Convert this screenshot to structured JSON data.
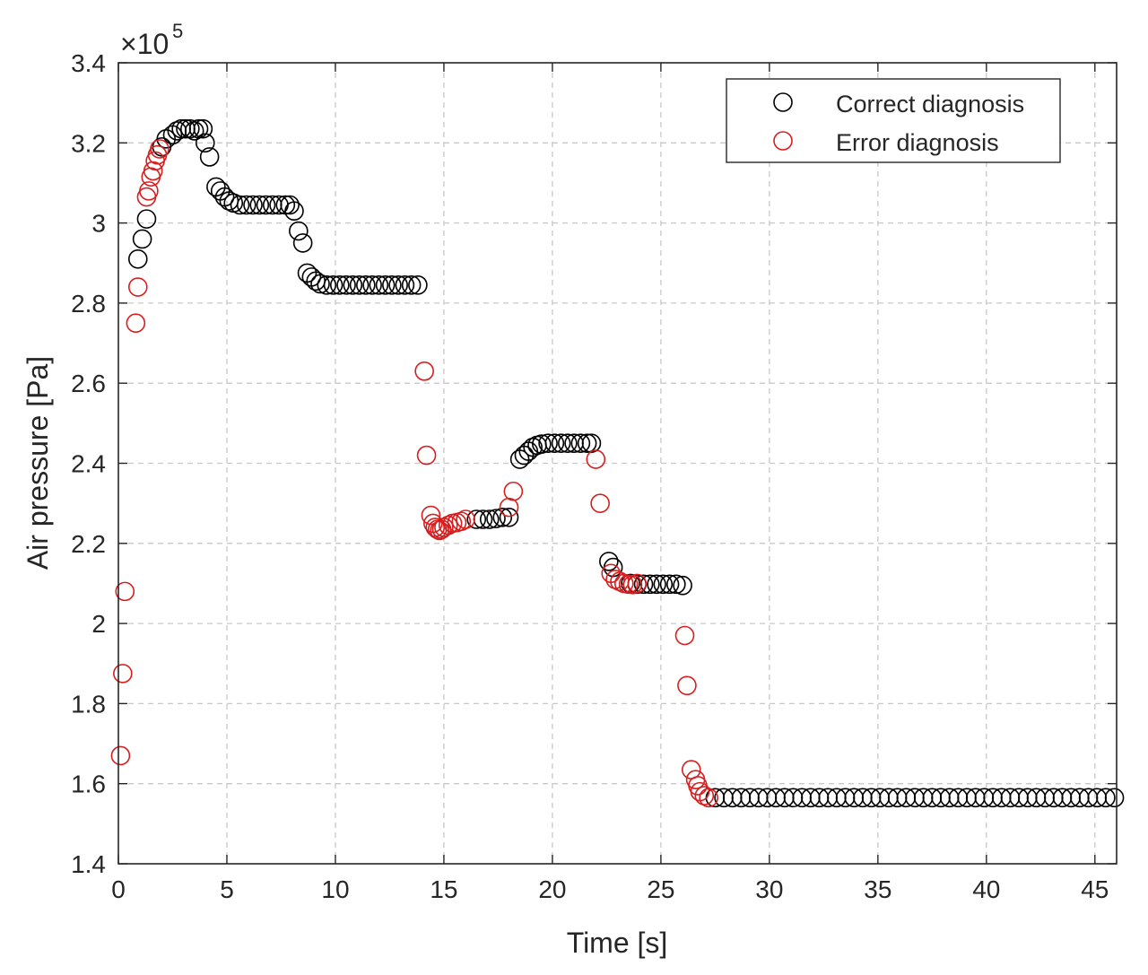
{
  "chart_data": {
    "type": "scatter",
    "title": "",
    "xlabel": "Time [s]",
    "ylabel": "Air pressure [Pa]",
    "exponent_prefix": "×10",
    "exponent_power": "5",
    "xlim": [
      0,
      46
    ],
    "ylim": [
      1.4,
      3.4
    ],
    "xticks": [
      "0",
      "5",
      "10",
      "15",
      "20",
      "25",
      "30",
      "35",
      "40",
      "45"
    ],
    "yticks": [
      "1.4",
      "1.6",
      "1.8",
      "2",
      "2.2",
      "2.4",
      "2.6",
      "2.8",
      "3",
      "3.2",
      "3.4"
    ],
    "grid": true,
    "legend_position": "top-right",
    "series": [
      {
        "name": "Correct diagnosis",
        "color": "#000000",
        "marker": "open-circle",
        "x": [
          0.9,
          1.1,
          1.3,
          2.0,
          2.2,
          2.5,
          2.7,
          2.9,
          3.1,
          3.3,
          3.5,
          3.7,
          3.9,
          4.0,
          4.2,
          4.5,
          4.7,
          4.9,
          5.1,
          5.3,
          5.6,
          5.9,
          6.2,
          6.5,
          6.8,
          7.1,
          7.4,
          7.7,
          7.9,
          8.1,
          8.3,
          8.5,
          8.7,
          8.9,
          9.1,
          9.3,
          9.6,
          9.9,
          10.2,
          10.5,
          10.8,
          11.1,
          11.4,
          11.7,
          12.0,
          12.3,
          12.6,
          12.9,
          13.2,
          13.5,
          13.8,
          16.5,
          16.8,
          17.1,
          17.4,
          17.7,
          18.0,
          18.5,
          18.7,
          18.9,
          19.1,
          19.3,
          19.5,
          19.8,
          20.1,
          20.4,
          20.7,
          21.0,
          21.3,
          21.6,
          21.8,
          22.6,
          22.8,
          23.6,
          23.9,
          24.2,
          24.5,
          24.8,
          25.1,
          25.4,
          25.7,
          26.0,
          27.5,
          27.9,
          28.3,
          28.7,
          29.1,
          29.5,
          29.9,
          30.3,
          30.7,
          31.1,
          31.5,
          31.9,
          32.3,
          32.7,
          33.1,
          33.5,
          33.9,
          34.3,
          34.7,
          35.1,
          35.5,
          35.9,
          36.3,
          36.7,
          37.1,
          37.5,
          37.9,
          38.3,
          38.7,
          39.1,
          39.5,
          39.9,
          40.3,
          40.7,
          41.1,
          41.5,
          41.9,
          42.3,
          42.7,
          43.1,
          43.5,
          43.9,
          44.3,
          44.7,
          45.1,
          45.5,
          45.9
        ],
        "y": [
          2.91,
          2.96,
          3.01,
          3.19,
          3.21,
          3.22,
          3.23,
          3.235,
          3.235,
          3.235,
          3.23,
          3.235,
          3.235,
          3.2,
          3.165,
          3.09,
          3.08,
          3.065,
          3.055,
          3.05,
          3.045,
          3.045,
          3.045,
          3.045,
          3.045,
          3.045,
          3.045,
          3.045,
          3.045,
          3.03,
          2.98,
          2.95,
          2.875,
          2.865,
          2.855,
          2.848,
          2.845,
          2.845,
          2.845,
          2.845,
          2.845,
          2.845,
          2.845,
          2.845,
          2.845,
          2.845,
          2.845,
          2.845,
          2.845,
          2.845,
          2.845,
          2.26,
          2.26,
          2.26,
          2.262,
          2.265,
          2.265,
          2.41,
          2.42,
          2.43,
          2.44,
          2.445,
          2.448,
          2.45,
          2.45,
          2.45,
          2.45,
          2.45,
          2.45,
          2.45,
          2.45,
          2.155,
          2.14,
          2.1,
          2.098,
          2.098,
          2.098,
          2.098,
          2.098,
          2.098,
          2.098,
          2.095,
          1.565,
          1.565,
          1.565,
          1.565,
          1.565,
          1.565,
          1.565,
          1.565,
          1.565,
          1.565,
          1.565,
          1.565,
          1.565,
          1.565,
          1.565,
          1.565,
          1.565,
          1.565,
          1.565,
          1.565,
          1.565,
          1.565,
          1.565,
          1.565,
          1.565,
          1.565,
          1.565,
          1.565,
          1.565,
          1.565,
          1.565,
          1.565,
          1.565,
          1.565,
          1.565,
          1.565,
          1.565,
          1.565,
          1.565,
          1.565,
          1.565,
          1.565,
          1.565,
          1.565,
          1.565,
          1.565,
          1.565
        ]
      },
      {
        "name": "Error diagnosis",
        "color": "#d81e1e",
        "marker": "open-circle",
        "x": [
          0.1,
          0.2,
          0.3,
          0.8,
          0.9,
          1.3,
          1.4,
          1.5,
          1.6,
          1.7,
          1.8,
          1.9,
          14.1,
          14.2,
          14.4,
          14.5,
          14.6,
          14.7,
          14.8,
          14.9,
          15.0,
          15.2,
          15.4,
          15.6,
          15.8,
          16.0,
          18.0,
          18.2,
          22.0,
          22.2,
          22.7,
          22.9,
          23.1,
          23.3,
          23.5,
          23.7,
          23.9,
          26.1,
          26.2,
          26.4,
          26.6,
          26.7,
          26.8,
          27.0,
          27.2
        ],
        "y": [
          1.67,
          1.875,
          2.08,
          2.75,
          2.84,
          3.065,
          3.08,
          3.115,
          3.13,
          3.155,
          3.17,
          3.185,
          2.63,
          2.42,
          2.27,
          2.25,
          2.24,
          2.235,
          2.232,
          2.235,
          2.24,
          2.245,
          2.25,
          2.252,
          2.255,
          2.26,
          2.29,
          2.33,
          2.41,
          2.3,
          2.125,
          2.11,
          2.105,
          2.1,
          2.098,
          2.097,
          2.1,
          1.97,
          1.845,
          1.635,
          1.61,
          1.595,
          1.58,
          1.57,
          1.565
        ]
      }
    ]
  }
}
